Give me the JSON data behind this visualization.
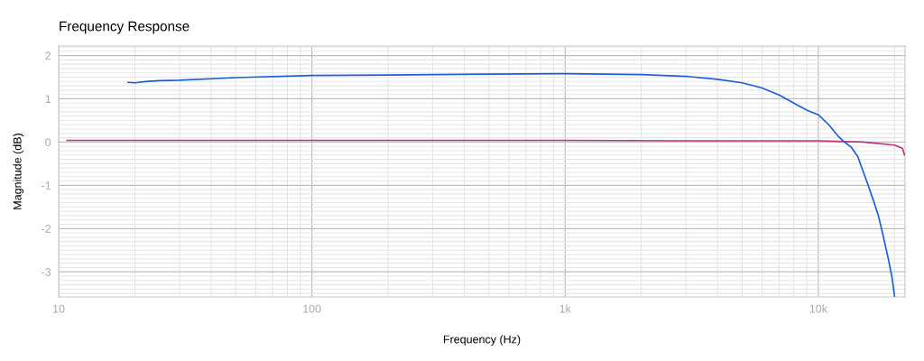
{
  "chart_data": {
    "type": "line",
    "title": "Frequency Response",
    "xlabel": "Frequency (Hz)",
    "ylabel": "Magnitude (dB)",
    "log": "x",
    "grid": true,
    "marker": "none",
    "line_style": "solid",
    "xlim": [
      10,
      22000
    ],
    "xticks": [
      10,
      100,
      {
        "value": 1000,
        "label": "1k"
      },
      {
        "value": 10000,
        "label": "10k"
      }
    ],
    "ylim": [
      -3.58,
      2.22
    ],
    "yticks": [
      -3,
      -2,
      -1,
      0,
      1,
      2
    ],
    "series": [
      {
        "color": "#b8357f",
        "x": [
          10.8,
          20,
          50,
          100,
          300,
          1000,
          3000,
          10000,
          15000,
          20000,
          21500,
          21900
        ],
        "values": [
          0.04,
          0.04,
          0.04,
          0.04,
          0.04,
          0.04,
          0.03,
          0.03,
          0.0,
          -0.07,
          -0.15,
          -0.3
        ]
      },
      {
        "color": "#1a5fd6",
        "x": [
          18.8,
          20,
          22,
          25,
          30,
          50,
          100,
          200,
          500,
          1000,
          2000,
          3000,
          4000,
          5000,
          6000,
          7000,
          8000,
          9000,
          10000,
          11000,
          12000,
          12500,
          13500,
          14300,
          15800,
          16500,
          17300,
          18000,
          18900,
          19500,
          20000
        ],
        "values": [
          1.38,
          1.37,
          1.4,
          1.42,
          1.43,
          1.49,
          1.54,
          1.55,
          1.57,
          1.58,
          1.56,
          1.52,
          1.45,
          1.37,
          1.25,
          1.09,
          0.9,
          0.74,
          0.63,
          0.4,
          0.13,
          0.03,
          -0.12,
          -0.33,
          -1.03,
          -1.35,
          -1.72,
          -2.15,
          -2.7,
          -3.1,
          -3.56
        ]
      }
    ]
  }
}
